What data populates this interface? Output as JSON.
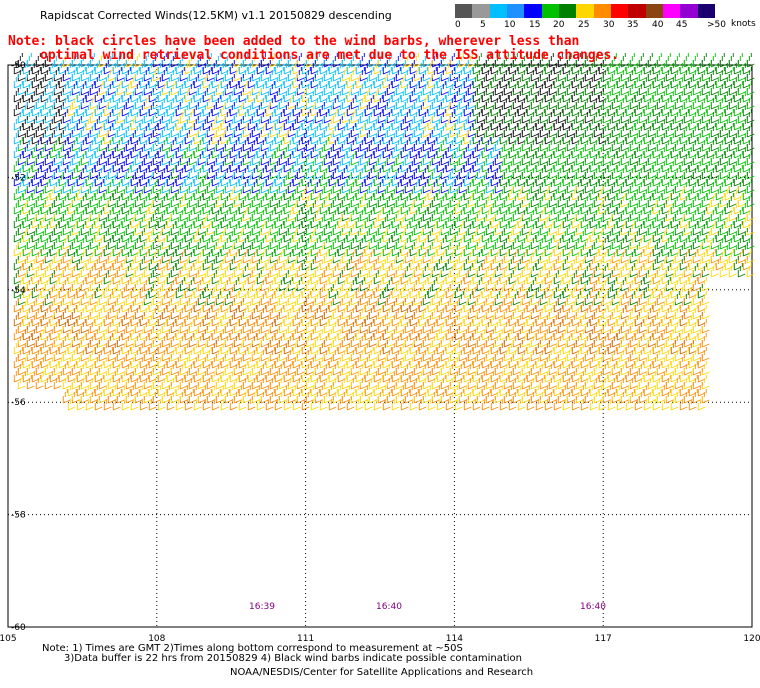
{
  "header": {
    "title": "Rapidscat Corrected Winds(12.5KM) v1.1 20150829 descending",
    "note_line1": "Note: black circles have been added to the wind barbs, wherever less than",
    "note_line2": "optimal wind retrieval conditions are met due to the ISS attitude changes."
  },
  "legend": {
    "colors": [
      "#555555",
      "#999999",
      "#00bfff",
      "#1e90ff",
      "#0000ff",
      "#00c000",
      "#008000",
      "#ffd700",
      "#ff8c00",
      "#ff0000",
      "#c00000",
      "#8b4513",
      "#ff00ff",
      "#9400d3",
      "#1a006e"
    ],
    "labels": [
      "0",
      "5",
      "10",
      "15",
      "20",
      "25",
      "30",
      "35",
      "40",
      "45",
      ">50"
    ],
    "units": "knots"
  },
  "map": {
    "lon_labels": [
      "105",
      "108",
      "111",
      "114",
      "117",
      "120"
    ],
    "lat_labels": [
      "-50",
      "-52",
      "-54",
      "-56",
      "-58",
      "-60"
    ],
    "time_labels": [
      "16:39",
      "16:40",
      "16:40"
    ],
    "time_color": "#800080"
  },
  "footer": {
    "line1": "Note: 1) Times are GMT 2)Times along bottom correspond to measurement at ~50S",
    "line2": "3)Data buffer is 22 hrs from 20150829 4) Black wind barbs indicate possible contamination",
    "line3": "NOAA/NESDIS/Center for Satellite Applications and Research"
  }
}
